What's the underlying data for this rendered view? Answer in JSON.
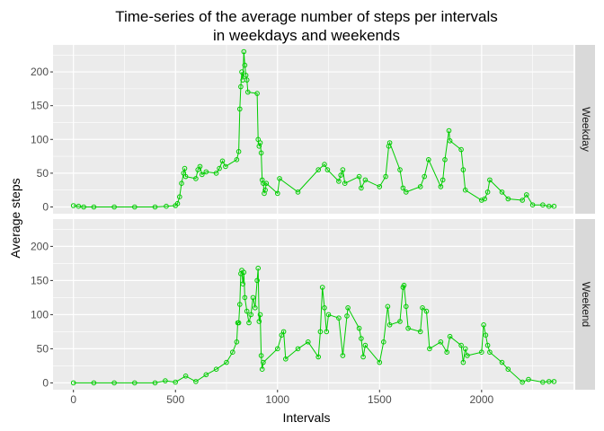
{
  "chart_data": {
    "type": "line",
    "title": "Time-series of the average number of steps per intervals\nin weekdays and weekends",
    "xlabel": "Intervals",
    "ylabel": "Average steps",
    "xlim": [
      -100,
      2450
    ],
    "ylim": [
      -10,
      240
    ],
    "x_ticks": [
      0,
      500,
      1000,
      1500,
      2000
    ],
    "y_ticks": [
      0,
      50,
      100,
      150,
      200
    ],
    "grid": true,
    "legend": "none",
    "colors": {
      "series": "#00cd00",
      "panel_background": "#ebebeb",
      "grid": "#ffffff",
      "strip_background": "#d9d9d9"
    },
    "panels": [
      {
        "label": "Weekday",
        "points": [
          [
            0,
            2
          ],
          [
            25,
            1
          ],
          [
            50,
            0
          ],
          [
            100,
            0
          ],
          [
            200,
            0
          ],
          [
            300,
            0
          ],
          [
            400,
            0
          ],
          [
            455,
            1
          ],
          [
            500,
            2
          ],
          [
            510,
            5
          ],
          [
            520,
            15
          ],
          [
            530,
            35
          ],
          [
            540,
            50
          ],
          [
            545,
            57
          ],
          [
            550,
            45
          ],
          [
            600,
            42
          ],
          [
            610,
            55
          ],
          [
            620,
            60
          ],
          [
            630,
            48
          ],
          [
            650,
            52
          ],
          [
            700,
            50
          ],
          [
            715,
            57
          ],
          [
            730,
            68
          ],
          [
            745,
            60
          ],
          [
            800,
            70
          ],
          [
            810,
            82
          ],
          [
            815,
            145
          ],
          [
            820,
            178
          ],
          [
            825,
            200
          ],
          [
            830,
            188
          ],
          [
            835,
            230
          ],
          [
            840,
            210
          ],
          [
            845,
            195
          ],
          [
            850,
            188
          ],
          [
            855,
            170
          ],
          [
            900,
            168
          ],
          [
            905,
            100
          ],
          [
            910,
            90
          ],
          [
            915,
            95
          ],
          [
            920,
            80
          ],
          [
            925,
            40
          ],
          [
            930,
            35
          ],
          [
            935,
            20
          ],
          [
            940,
            25
          ],
          [
            945,
            35
          ],
          [
            1000,
            20
          ],
          [
            1010,
            42
          ],
          [
            1100,
            22
          ],
          [
            1200,
            55
          ],
          [
            1230,
            63
          ],
          [
            1245,
            55
          ],
          [
            1300,
            38
          ],
          [
            1310,
            47
          ],
          [
            1320,
            55
          ],
          [
            1330,
            35
          ],
          [
            1400,
            45
          ],
          [
            1410,
            28
          ],
          [
            1430,
            40
          ],
          [
            1500,
            30
          ],
          [
            1530,
            45
          ],
          [
            1545,
            90
          ],
          [
            1550,
            95
          ],
          [
            1600,
            55
          ],
          [
            1615,
            28
          ],
          [
            1630,
            22
          ],
          [
            1700,
            30
          ],
          [
            1720,
            45
          ],
          [
            1740,
            70
          ],
          [
            1800,
            30
          ],
          [
            1810,
            40
          ],
          [
            1820,
            70
          ],
          [
            1840,
            113
          ],
          [
            1845,
            98
          ],
          [
            1900,
            85
          ],
          [
            1910,
            55
          ],
          [
            1920,
            25
          ],
          [
            2000,
            10
          ],
          [
            2015,
            12
          ],
          [
            2030,
            22
          ],
          [
            2040,
            40
          ],
          [
            2100,
            22
          ],
          [
            2130,
            12
          ],
          [
            2200,
            10
          ],
          [
            2220,
            18
          ],
          [
            2250,
            3
          ],
          [
            2300,
            3
          ],
          [
            2330,
            1
          ],
          [
            2355,
            1
          ]
        ]
      },
      {
        "label": "Weekend",
        "points": [
          [
            0,
            0
          ],
          [
            100,
            0
          ],
          [
            200,
            0
          ],
          [
            300,
            0
          ],
          [
            400,
            0
          ],
          [
            450,
            3
          ],
          [
            500,
            1
          ],
          [
            550,
            10
          ],
          [
            600,
            2
          ],
          [
            650,
            12
          ],
          [
            700,
            20
          ],
          [
            750,
            30
          ],
          [
            780,
            45
          ],
          [
            800,
            60
          ],
          [
            805,
            88
          ],
          [
            810,
            88
          ],
          [
            815,
            115
          ],
          [
            820,
            160
          ],
          [
            825,
            165
          ],
          [
            830,
            145
          ],
          [
            835,
            162
          ],
          [
            840,
            125
          ],
          [
            850,
            105
          ],
          [
            860,
            88
          ],
          [
            870,
            100
          ],
          [
            880,
            125
          ],
          [
            890,
            110
          ],
          [
            900,
            150
          ],
          [
            905,
            168
          ],
          [
            910,
            90
          ],
          [
            915,
            100
          ],
          [
            920,
            40
          ],
          [
            925,
            20
          ],
          [
            930,
            30
          ],
          [
            1000,
            50
          ],
          [
            1020,
            70
          ],
          [
            1030,
            75
          ],
          [
            1040,
            35
          ],
          [
            1100,
            50
          ],
          [
            1150,
            60
          ],
          [
            1200,
            38
          ],
          [
            1210,
            75
          ],
          [
            1220,
            140
          ],
          [
            1230,
            110
          ],
          [
            1240,
            75
          ],
          [
            1250,
            100
          ],
          [
            1300,
            95
          ],
          [
            1320,
            40
          ],
          [
            1340,
            98
          ],
          [
            1345,
            110
          ],
          [
            1400,
            80
          ],
          [
            1410,
            65
          ],
          [
            1420,
            38
          ],
          [
            1430,
            55
          ],
          [
            1500,
            30
          ],
          [
            1520,
            60
          ],
          [
            1540,
            112
          ],
          [
            1550,
            85
          ],
          [
            1600,
            90
          ],
          [
            1615,
            140
          ],
          [
            1620,
            143
          ],
          [
            1630,
            112
          ],
          [
            1640,
            80
          ],
          [
            1700,
            75
          ],
          [
            1710,
            110
          ],
          [
            1730,
            105
          ],
          [
            1745,
            50
          ],
          [
            1800,
            60
          ],
          [
            1830,
            45
          ],
          [
            1845,
            68
          ],
          [
            1900,
            55
          ],
          [
            1910,
            30
          ],
          [
            1920,
            50
          ],
          [
            1930,
            40
          ],
          [
            2000,
            45
          ],
          [
            2010,
            85
          ],
          [
            2020,
            70
          ],
          [
            2030,
            55
          ],
          [
            2040,
            45
          ],
          [
            2100,
            30
          ],
          [
            2130,
            20
          ],
          [
            2200,
            1
          ],
          [
            2230,
            5
          ],
          [
            2300,
            1
          ],
          [
            2330,
            2
          ],
          [
            2355,
            2
          ]
        ]
      }
    ]
  }
}
